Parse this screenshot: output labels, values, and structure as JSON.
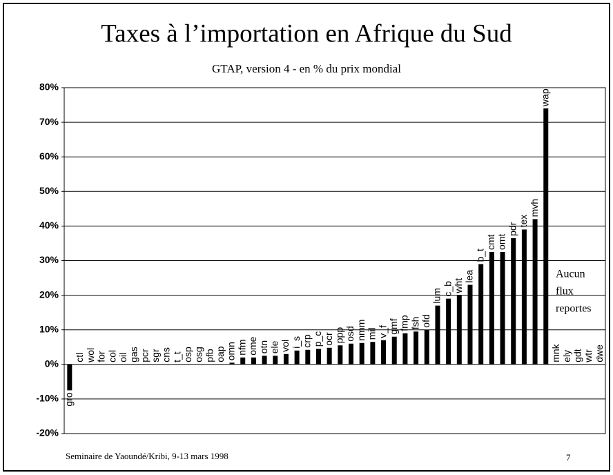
{
  "chart_data": {
    "type": "bar",
    "title": "Taxes à l’importation en Afrique du Sud",
    "subtitle": "GTAP, version 4 - en % du prix mondial",
    "categories": [
      "gro",
      "ctl",
      "wol",
      "for",
      "col",
      "oil",
      "gas",
      "pcr",
      "sgr",
      "cns",
      "t_t",
      "osp",
      "osg",
      "pfb",
      "oap",
      "omn",
      "nfm",
      "ome",
      "otn",
      "ele",
      "vol",
      "i_s",
      "crp",
      "p_c",
      "ocr",
      "ppp",
      "osd",
      "nmm",
      "mil",
      "v_f",
      "gmf",
      "fmp",
      "fsh",
      "ofd",
      "lum",
      "c_b",
      "wht",
      "lea",
      "b_t",
      "cmt",
      "omt",
      "pdr",
      "tex",
      "mvh",
      "wap",
      "mnk",
      "ely",
      "gdt",
      "wtr",
      "dwe"
    ],
    "values": [
      -7.5,
      0,
      0,
      0,
      0,
      0,
      0,
      0,
      0,
      0,
      0,
      0,
      0,
      0,
      0,
      0.5,
      2,
      2,
      2.5,
      2.5,
      3,
      4,
      4.2,
      4.5,
      4.8,
      5.5,
      6,
      6.2,
      6.5,
      7,
      8,
      9,
      9.5,
      10,
      17,
      19,
      20,
      23,
      29,
      32.5,
      32.5,
      36.5,
      39,
      42,
      74,
      null,
      null,
      null,
      null,
      null
    ],
    "color": "#000000",
    "ylim": [
      -20,
      80
    ],
    "yticks": [
      {
        "value": -20,
        "label": "-20%"
      },
      {
        "value": -10,
        "label": "-10%"
      },
      {
        "value": 0,
        "label": "0%"
      },
      {
        "value": 10,
        "label": "10%"
      },
      {
        "value": 20,
        "label": "20%"
      },
      {
        "value": 30,
        "label": "30%"
      },
      {
        "value": 40,
        "label": "40%"
      },
      {
        "value": 50,
        "label": "50%"
      },
      {
        "value": 60,
        "label": "60%"
      },
      {
        "value": 70,
        "label": "70%"
      },
      {
        "value": 80,
        "label": "80%"
      }
    ],
    "grid": true,
    "annotation": [
      "Aucun",
      "flux",
      "reportes"
    ],
    "footer": "Seminaire de Yaoundé/Kribi, 9-13 mars 1998",
    "page_number": "7"
  }
}
